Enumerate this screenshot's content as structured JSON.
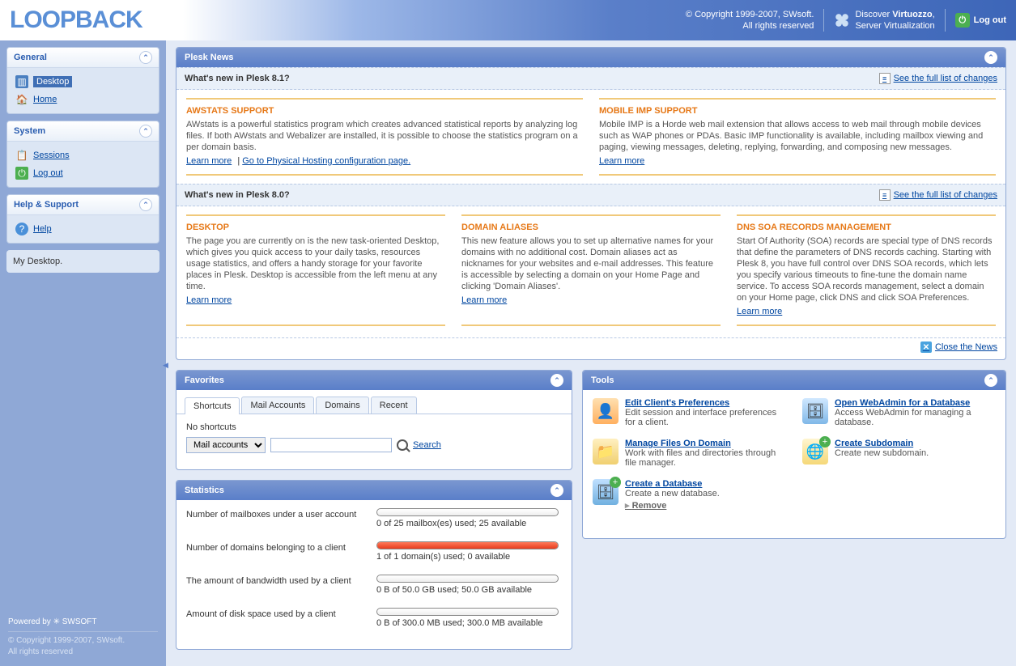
{
  "header": {
    "logo": "LOOPBACK",
    "copyright1": "© Copyright 1999-2007, SWsoft.",
    "copyright2": "All rights reserved",
    "discover1": "Discover ",
    "discover_bold": "Virtuozzo",
    "discover2": "Server Virtualization",
    "logout": "Log out"
  },
  "sidebar": {
    "general": {
      "title": "General",
      "desktop": "Desktop",
      "home": "Home"
    },
    "system": {
      "title": "System",
      "sessions": "Sessions",
      "logout": "Log out"
    },
    "help": {
      "title": "Help & Support",
      "help": "Help"
    },
    "context": "My Desktop.",
    "powered": "Powered by ✳ SWSOFT",
    "footer1": "© Copyright 1999-2007, SWsoft.",
    "footer2": "All rights reserved"
  },
  "news": {
    "title": "Plesk News",
    "sec81": {
      "heading": "What's new in Plesk 8.1?",
      "full_list": "See the full list of changes",
      "awstats": {
        "title": "AWSTATS SUPPORT",
        "body": "AWstats is a powerful statistics program which creates advanced statistical reports by analyzing log files. If both AWstats and Webalizer are installed, it is possible to choose the statistics program on a per domain basis.",
        "learn": "Learn more",
        "extra": "Go to Physical Hosting configuration page."
      },
      "mobile": {
        "title": "MOBILE IMP SUPPORT",
        "body": "Mobile IMP is a Horde web mail extension that allows access to web mail through mobile devices such as WAP phones or PDAs. Basic IMP functionality is available, including mailbox viewing and paging, viewing messages, deleting, replying, forwarding, and composing new messages.",
        "learn": "Learn more"
      }
    },
    "sec80": {
      "heading": "What's new in Plesk 8.0?",
      "full_list": "See the full list of changes",
      "desktop": {
        "title": "DESKTOP",
        "body": "The page you are currently on is the new task-oriented Desktop, which gives you quick access to your daily tasks, resources usage statistics, and offers a handy storage for your favorite places in Plesk. Desktop is accessible from the left menu at any time.",
        "learn": "Learn more"
      },
      "aliases": {
        "title": "DOMAIN ALIASES",
        "body": "This new feature allows you to set up alternative names for your domains with no additional cost. Domain aliases act as nicknames for your websites and e-mail addresses. This feature is accessible by selecting a domain on your Home Page and clicking 'Domain Aliases'.",
        "learn": "Learn more"
      },
      "soa": {
        "title": "DNS SOA RECORDS MANAGEMENT",
        "body": "Start Of Authority (SOA) records are special type of DNS records that define the parameters of DNS records caching. Starting with Plesk 8, you have full control over DNS SOA records, which lets you specify various timeouts to fine-tune the domain name service. To access SOA records management, select a domain on your Home page, click DNS and click SOA Preferences.",
        "learn": "Learn more"
      }
    },
    "close": "Close the News"
  },
  "favorites": {
    "title": "Favorites",
    "tabs": {
      "shortcuts": "Shortcuts",
      "mail": "Mail Accounts",
      "domains": "Domains",
      "recent": "Recent"
    },
    "empty": "No shortcuts",
    "select_value": "Mail accounts",
    "search": "Search"
  },
  "stats": {
    "title": "Statistics",
    "rows": [
      {
        "label": "Number of mailboxes under a user account",
        "text": "0 of 25 mailbox(es) used; 25 available",
        "pct": 0
      },
      {
        "label": "Number of domains belonging to a client",
        "text": "1 of 1 domain(s) used; 0 available",
        "pct": 100
      },
      {
        "label": "The amount of bandwidth used by a client",
        "text": "0 B of 50.0 GB used; 50.0 GB available",
        "pct": 0
      },
      {
        "label": "Amount of disk space used by a client",
        "text": "0 B of 300.0 MB used; 300.0 MB available",
        "pct": 0
      }
    ]
  },
  "tools": {
    "title": "Tools",
    "prefs": {
      "title": "Edit Client's Preferences",
      "desc": "Edit session and interface preferences for a client."
    },
    "files": {
      "title": "Manage Files On Domain",
      "desc": "Work with files and directories through file manager."
    },
    "createdb": {
      "title": "Create a Database",
      "desc": "Create a new database.",
      "remove": "Remove"
    },
    "webadmin": {
      "title": "Open WebAdmin for a Database",
      "desc": "Access WebAdmin for managing a database."
    },
    "subdomain": {
      "title": "Create Subdomain",
      "desc": "Create new subdomain."
    }
  }
}
